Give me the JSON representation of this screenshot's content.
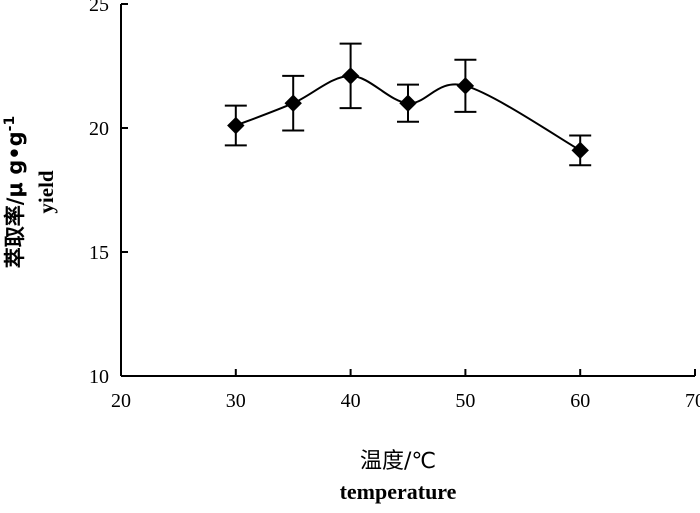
{
  "chart_data": {
    "type": "line",
    "title": "",
    "xlabel_cn": "温度/℃",
    "xlabel_en": "temperature",
    "ylabel_cn_prefix": "萃取率/μ g•g",
    "ylabel_cn_superscript": "-1",
    "ylabel_en": "yield",
    "xlim": [
      20,
      70
    ],
    "ylim": [
      10,
      25
    ],
    "x_ticks": [
      20,
      30,
      40,
      50,
      60,
      70
    ],
    "y_ticks": [
      10,
      15,
      20,
      25
    ],
    "grid": false,
    "legend": "none",
    "marker": "diamond",
    "smooth": true,
    "color": "#000000",
    "series": [
      {
        "x": [
          30,
          35,
          40,
          45,
          50,
          60
        ],
        "y": [
          20.1,
          21.0,
          22.1,
          21.0,
          21.7,
          19.1
        ],
        "error": [
          0.8,
          1.1,
          1.3,
          0.75,
          1.05,
          0.6
        ]
      }
    ]
  }
}
